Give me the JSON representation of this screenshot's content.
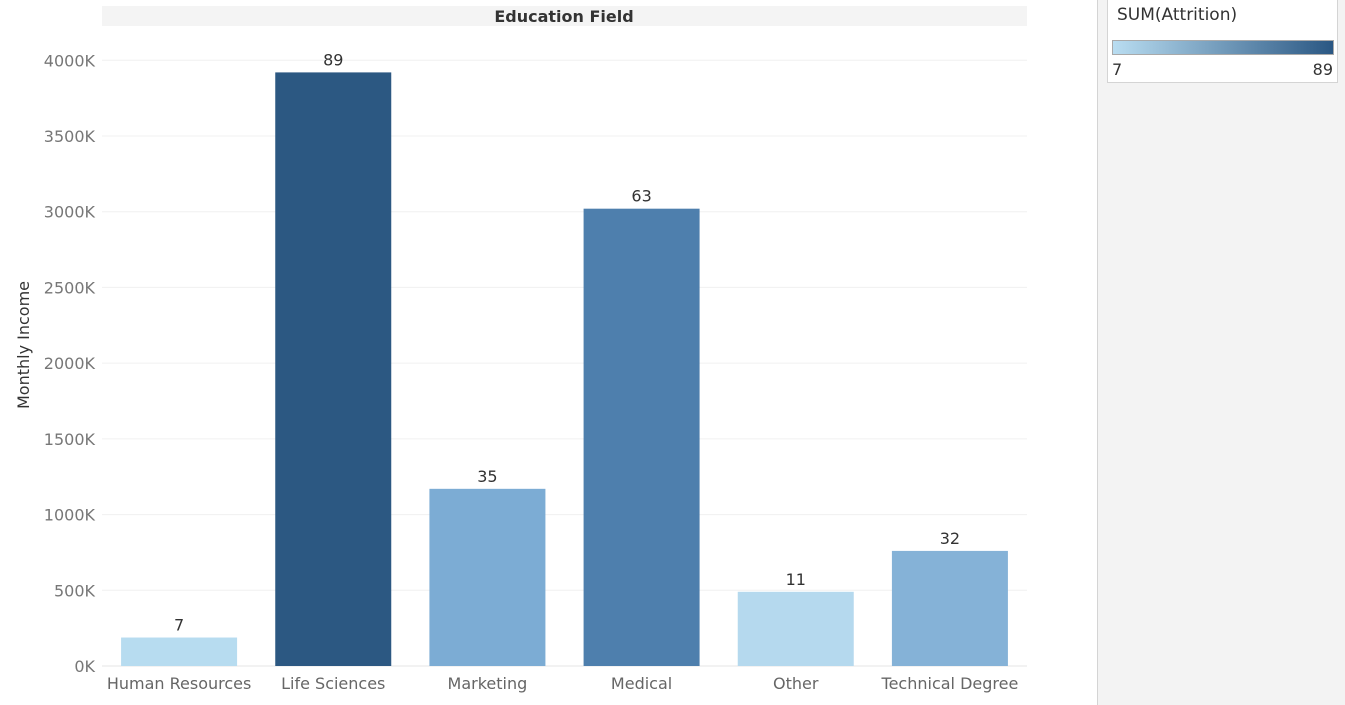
{
  "chart_data": {
    "type": "bar",
    "title": "Education Field",
    "xlabel": "",
    "ylabel": "Monthly Income",
    "categories": [
      "Human Resources",
      "Life Sciences",
      "Marketing",
      "Medical",
      "Other",
      "Technical Degree"
    ],
    "values": [
      188000,
      3920000,
      1170000,
      3020000,
      490000,
      760000
    ],
    "labels": [
      "7",
      "89",
      "35",
      "63",
      "11",
      "32"
    ],
    "color_values": [
      7,
      89,
      35,
      63,
      11,
      32
    ],
    "bar_colors": [
      "#b7dcf0",
      "#2c5882",
      "#7cacd4",
      "#4e7fad",
      "#b5d9ee",
      "#85b2d7"
    ],
    "ylim": [
      0,
      4200000
    ],
    "yticks": [
      0,
      500000,
      1000000,
      1500000,
      2000000,
      2500000,
      3000000,
      3500000,
      4000000
    ],
    "ytick_labels": [
      "0K",
      "500K",
      "1000K",
      "1500K",
      "2000K",
      "2500K",
      "3000K",
      "3500K",
      "4000K"
    ],
    "grid": true,
    "legend": {
      "title": "SUM(Attrition)",
      "min_label": "7",
      "max_label": "89",
      "color_min": "#b9ddf1",
      "color_max": "#2a5783",
      "placement": "top-right"
    }
  }
}
